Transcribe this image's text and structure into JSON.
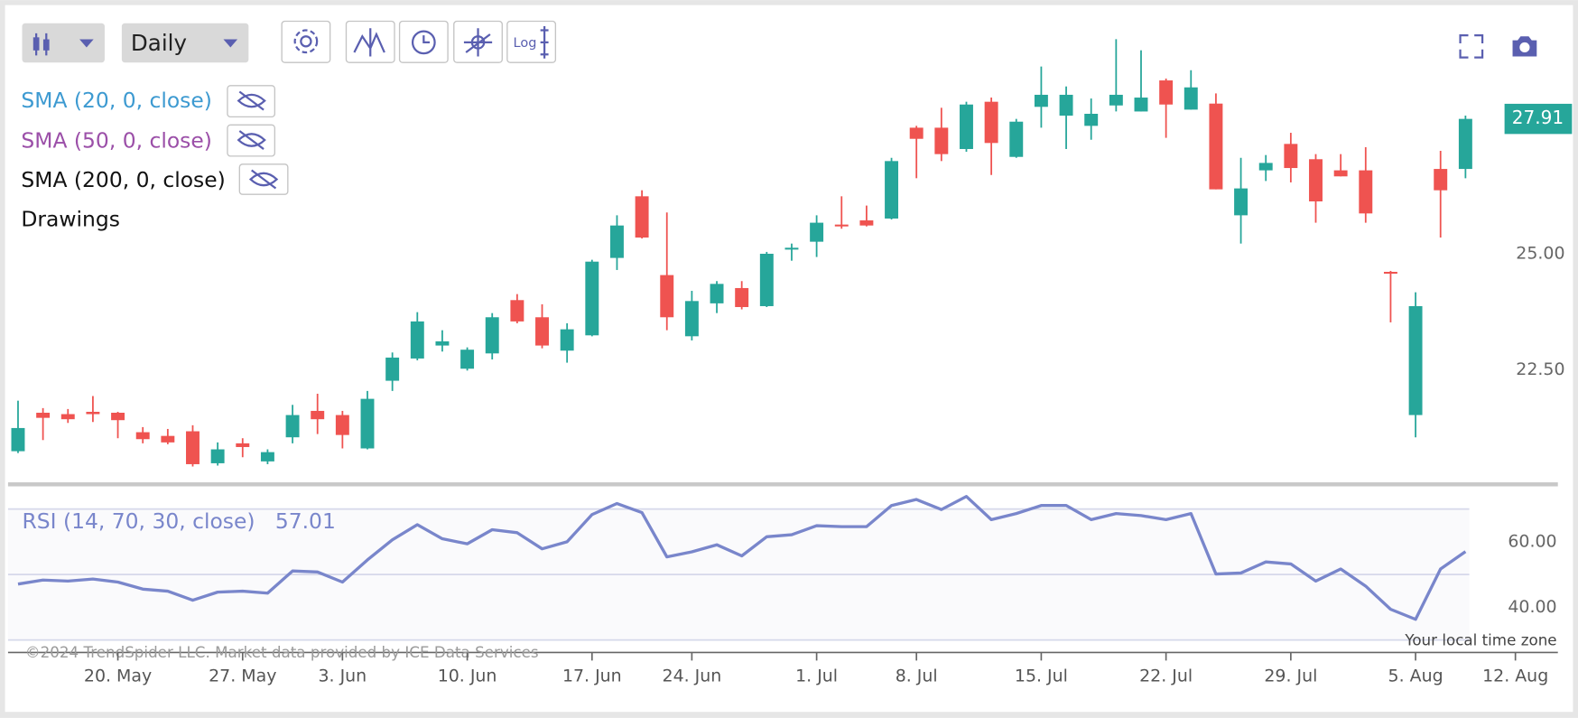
{
  "toolbar": {
    "interval": "Daily",
    "log_button": "Log"
  },
  "indicators": [
    {
      "label": "SMA (20, 0, close)",
      "color": "#3d9ad1"
    },
    {
      "label": "SMA (50, 0, close)",
      "color": "#9b4fa8"
    },
    {
      "label": "SMA (200, 0, close)",
      "color": "#111111"
    }
  ],
  "drawings_label": "Drawings",
  "copyright": "©2024 TrendSpider LLC. Market data provided by ICE Data Services",
  "timezone_note": "Your local time zone",
  "chart_data": [
    {
      "type": "candlestick",
      "up_color": "#26a69a",
      "down_color": "#ef5350",
      "open": [
        20.74,
        21.57,
        21.54,
        21.59,
        21.57,
        21.15,
        21.07,
        21.17,
        20.48,
        20.91,
        20.52,
        21.04,
        21.61,
        21.52,
        20.8,
        22.26,
        22.74,
        23.02,
        22.52,
        22.85,
        24.0,
        23.63,
        22.91,
        23.24,
        24.91,
        26.24,
        24.54,
        23.22,
        23.93,
        24.26,
        23.87,
        25.09,
        25.26,
        25.63,
        25.72,
        25.76,
        27.72,
        27.72,
        27.26,
        28.28,
        27.09,
        28.17,
        27.98,
        27.76,
        28.2,
        28.07,
        28.74,
        28.11,
        28.24,
        25.83,
        26.8,
        27.37,
        27.04,
        26.8,
        26.8,
        24.61,
        21.52,
        26.83,
        26.83
      ],
      "high": [
        21.83,
        21.67,
        21.65,
        21.93,
        21.59,
        21.26,
        21.22,
        21.3,
        20.93,
        21.02,
        20.78,
        21.74,
        21.98,
        21.61,
        22.04,
        22.87,
        23.74,
        23.35,
        22.98,
        23.72,
        24.13,
        23.91,
        23.5,
        24.87,
        25.83,
        26.37,
        25.89,
        24.2,
        24.41,
        24.41,
        25.04,
        25.22,
        25.83,
        26.24,
        26.04,
        27.07,
        27.76,
        28.15,
        28.28,
        28.37,
        27.91,
        29.04,
        28.61,
        28.35,
        29.63,
        29.39,
        28.78,
        28.96,
        28.46,
        27.07,
        27.13,
        27.61,
        27.15,
        27.15,
        27.3,
        24.63,
        24.17,
        27.22,
        27.98
      ],
      "low": [
        20.7,
        20.98,
        21.35,
        21.37,
        21.02,
        20.91,
        20.89,
        20.41,
        20.43,
        20.61,
        20.46,
        20.91,
        21.11,
        20.8,
        20.78,
        22.04,
        22.7,
        22.89,
        22.48,
        22.72,
        23.5,
        22.96,
        22.65,
        23.22,
        24.65,
        25.33,
        23.35,
        23.13,
        23.72,
        23.8,
        23.85,
        24.85,
        24.93,
        25.54,
        25.59,
        25.74,
        26.63,
        27.0,
        27.2,
        26.7,
        27.07,
        27.72,
        27.26,
        27.46,
        28.07,
        28.07,
        27.5,
        28.11,
        26.39,
        25.22,
        26.57,
        26.54,
        25.67,
        26.67,
        25.67,
        23.52,
        21.04,
        25.35,
        26.63
      ],
      "close": [
        21.24,
        21.46,
        21.43,
        21.54,
        21.41,
        21.0,
        20.93,
        20.46,
        20.78,
        20.83,
        20.72,
        21.52,
        21.43,
        21.09,
        21.87,
        22.76,
        23.54,
        23.11,
        22.93,
        23.63,
        23.54,
        23.02,
        23.37,
        24.83,
        25.61,
        25.35,
        23.63,
        23.98,
        24.35,
        23.85,
        25.0,
        25.13,
        25.67,
        25.59,
        25.61,
        27.0,
        27.48,
        27.15,
        28.22,
        27.39,
        27.85,
        28.43,
        28.43,
        28.02,
        28.43,
        28.37,
        28.22,
        28.59,
        26.39,
        26.41,
        26.96,
        26.85,
        26.13,
        26.67,
        25.87,
        24.57,
        23.87,
        26.37,
        27.91
      ],
      "ylim": [
        20.09,
        30.3
      ],
      "yticks": [
        {
          "value": 22.5,
          "label": "22.50"
        },
        {
          "value": 25,
          "label": "25.00"
        }
      ]
    },
    {
      "type": "line",
      "series": [
        {
          "name": "RSI (14, 70, 30, close)",
          "color": "#7986cb",
          "values": [
            47.08,
            48.31,
            48.0,
            48.62,
            47.69,
            45.54,
            44.92,
            42.15,
            44.62,
            44.92,
            44.31,
            51.08,
            50.77,
            47.69,
            54.46,
            60.62,
            65.23,
            60.92,
            59.38,
            63.69,
            62.77,
            57.85,
            60.0,
            68.31,
            71.69,
            68.92,
            55.38,
            56.92,
            59.08,
            55.69,
            61.54,
            62.15,
            64.92,
            64.62,
            64.62,
            71.08,
            72.92,
            69.85,
            73.85,
            66.77,
            68.62,
            71.08,
            71.08,
            66.77,
            68.62,
            68.0,
            66.77,
            68.62,
            50.15,
            50.46,
            53.85,
            53.23,
            48.0,
            51.69,
            46.46,
            39.38,
            36.31,
            51.69,
            57.01
          ]
        }
      ],
      "ylim": [
        27.1,
        75.7
      ],
      "yticks": [
        {
          "value": 40,
          "label": "40.00"
        },
        {
          "value": 60,
          "label": "60.00"
        }
      ],
      "levels": [
        30,
        50,
        70
      ],
      "xlim": [
        -0.4,
        61.5
      ],
      "xticks": [
        {
          "value": 4,
          "label": "20. May"
        },
        {
          "value": 9,
          "label": "27. May"
        },
        {
          "value": 13,
          "label": "3. Jun"
        },
        {
          "value": 18,
          "label": "10. Jun"
        },
        {
          "value": 23,
          "label": "17. Jun"
        },
        {
          "value": 27,
          "label": "24. Jun"
        },
        {
          "value": 32,
          "label": "1. Jul"
        },
        {
          "value": 36,
          "label": "8. Jul"
        },
        {
          "value": 41,
          "label": "15. Jul"
        },
        {
          "value": 46,
          "label": "22. Jul"
        },
        {
          "value": 51,
          "label": "29. Jul"
        },
        {
          "value": 56,
          "label": "5. Aug"
        },
        {
          "value": 60,
          "label": "12. Aug"
        }
      ]
    }
  ]
}
